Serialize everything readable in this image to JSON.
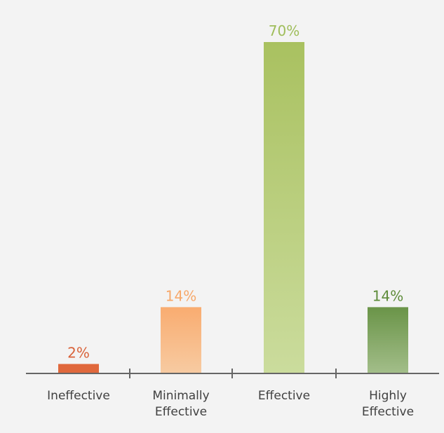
{
  "chart_data": {
    "type": "bar",
    "categories": [
      [
        "Ineffective"
      ],
      [
        "Minimally",
        "Effective"
      ],
      [
        "Effective"
      ],
      [
        "Highly",
        "Effective"
      ]
    ],
    "values": [
      2,
      14,
      70,
      14
    ],
    "value_labels": [
      "2%",
      "14%",
      "70%",
      "14%"
    ],
    "ylim": [
      0,
      70
    ],
    "grid": false,
    "legend": "none",
    "colors": [
      {
        "label": "#d9623a",
        "top": "#e0683c",
        "bottom": "#e0683c"
      },
      {
        "label": "#f7a86a",
        "top": "#f9ac70",
        "bottom": "#f7cba2"
      },
      {
        "label": "#9fbd5a",
        "top": "#a9c160",
        "bottom": "#cbdc9d"
      },
      {
        "label": "#5e8c3a",
        "top": "#6a9448",
        "bottom": "#a3be8a"
      }
    ],
    "axis_color": "#666666",
    "text_color": "#404040"
  }
}
